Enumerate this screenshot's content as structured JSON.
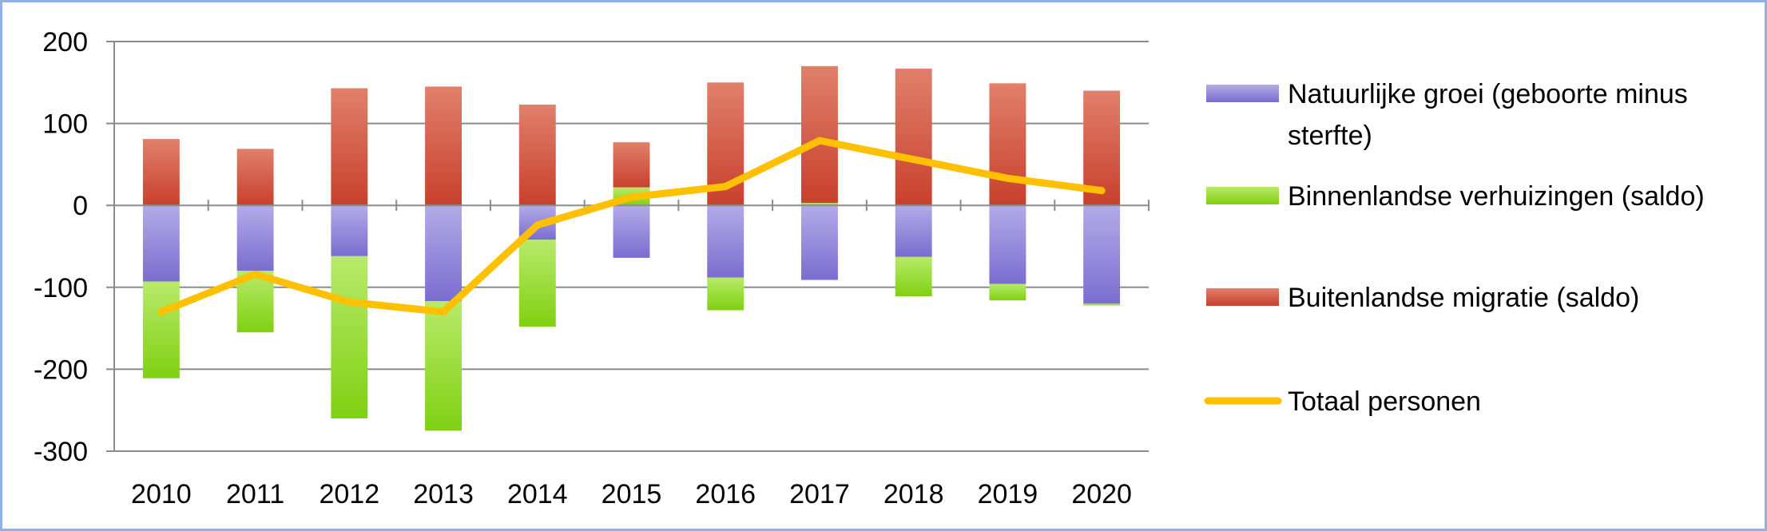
{
  "chart_data": {
    "type": "bar",
    "stacked": true,
    "categories": [
      "2010",
      "2011",
      "2012",
      "2013",
      "2014",
      "2015",
      "2016",
      "2017",
      "2018",
      "2019",
      "2020"
    ],
    "ylim": [
      -300,
      200
    ],
    "yticks": [
      200,
      100,
      0,
      -100,
      -200,
      -300
    ],
    "ytick_labels": [
      "200",
      "100",
      "0",
      "-100",
      "-200",
      "-300"
    ],
    "grid": true,
    "legend_position": "right",
    "series": [
      {
        "name": "Natuurlijke groei (geboorte minus sterfte)",
        "legend_lines": [
          "Natuurlijke groei (geboorte minus",
          "sterfte)"
        ],
        "kind": "bar",
        "color": "#8a7fd6",
        "values": [
          -93,
          -80,
          -62,
          -117,
          -42,
          -64,
          -88,
          -91,
          -63,
          -96,
          -120
        ]
      },
      {
        "name": "Binnenlandse verhuizingen (saldo)",
        "legend_lines": [
          "Binnenlandse verhuizingen (saldo)"
        ],
        "kind": "bar",
        "color": "#8fd62a",
        "values": [
          -118,
          -75,
          -198,
          -158,
          -106,
          22,
          -40,
          3,
          -48,
          -20,
          -2
        ]
      },
      {
        "name": "Buitenlandse migratie (saldo)",
        "legend_lines": [
          "Buitenlandse migratie (saldo)"
        ],
        "kind": "bar",
        "color": "#cc4b38",
        "values": [
          81,
          69,
          143,
          145,
          123,
          55,
          150,
          167,
          167,
          149,
          140
        ]
      },
      {
        "name": "Totaal personen",
        "legend_lines": [
          "Totaal personen"
        ],
        "kind": "line",
        "color": "#ffc000",
        "values": [
          -130,
          -84,
          -118,
          -130,
          -24,
          10,
          23,
          79,
          56,
          33,
          18
        ]
      }
    ]
  }
}
